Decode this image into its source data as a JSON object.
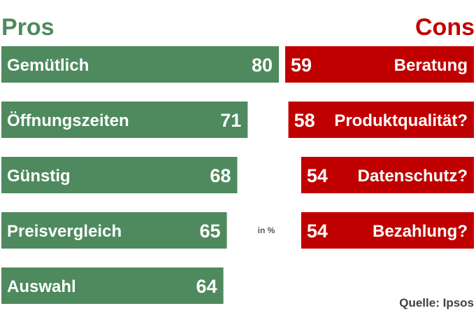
{
  "chart_data": [
    {
      "type": "bar",
      "title": "Pros",
      "categories": [
        "Gemütlich",
        "Öffnungszeiten",
        "Günstig",
        "Preisvergleich",
        "Auswahl"
      ],
      "values": [
        80,
        71,
        68,
        65,
        64
      ],
      "orientation": "horizontal",
      "color": "#4e8a5e"
    },
    {
      "type": "bar",
      "title": "Cons",
      "categories": [
        "Beratung",
        "Produktqualität?",
        "Datenschutz?",
        "Bezahlung?"
      ],
      "values": [
        59,
        58,
        54,
        54
      ],
      "orientation": "horizontal",
      "direction": "right-to-left",
      "color": "#c00000"
    }
  ],
  "unit_note": "in %",
  "source": "Quelle: Ipsos",
  "colors": {
    "pros": "#4e8a5e",
    "cons": "#c00000"
  }
}
